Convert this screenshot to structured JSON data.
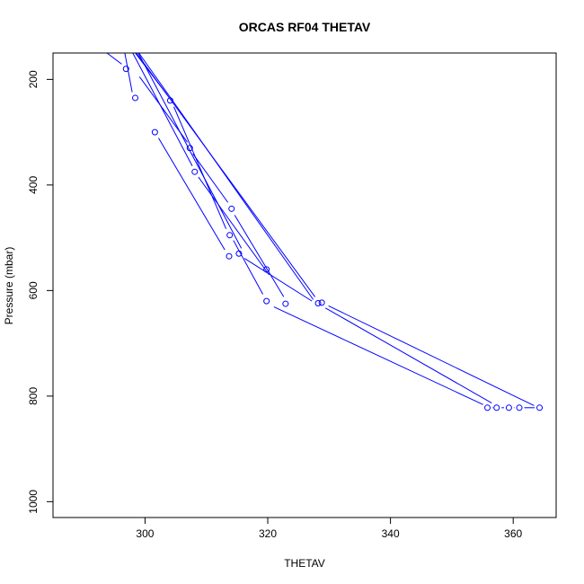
{
  "chart_data": {
    "type": "line",
    "title": "ORCAS RF04 THETAV",
    "xlabel": "THETAV",
    "ylabel": "Pressure (mbar)",
    "xlim": [
      285,
      367
    ],
    "ylim": [
      1030,
      150
    ],
    "y_reversed": true,
    "x_ticks": [
      300,
      320,
      340,
      360
    ],
    "y_ticks": [
      200,
      400,
      600,
      800,
      1000
    ],
    "grid": false,
    "legend": "none",
    "series_color": "#0000ff",
    "point_style": "open-circle",
    "series": [
      {
        "marker_points": [
          {
            "x": 296.9,
            "y": 180
          },
          {
            "x": 298.4,
            "y": 235
          },
          {
            "x": 301.6,
            "y": 300
          },
          {
            "x": 304.1,
            "y": 240
          },
          {
            "x": 307.3,
            "y": 330
          },
          {
            "x": 308.1,
            "y": 375
          },
          {
            "x": 313.7,
            "y": 535
          },
          {
            "x": 313.8,
            "y": 495
          },
          {
            "x": 314.1,
            "y": 445
          },
          {
            "x": 315.3,
            "y": 530
          },
          {
            "x": 319.8,
            "y": 560
          },
          {
            "x": 319.8,
            "y": 620
          },
          {
            "x": 322.9,
            "y": 625
          },
          {
            "x": 328.2,
            "y": 624
          },
          {
            "x": 328.8,
            "y": 623
          },
          {
            "x": 355.8,
            "y": 822
          },
          {
            "x": 357.3,
            "y": 822
          },
          {
            "x": 359.3,
            "y": 822
          },
          {
            "x": 361.0,
            "y": 822
          },
          {
            "x": 364.3,
            "y": 822
          }
        ],
        "segments": [
          [
            {
              "x": 293.8,
              "y": 150
            },
            {
              "x": 296.2,
              "y": 171
            }
          ],
          [
            {
              "x": 296.7,
              "y": 150
            },
            {
              "x": 297.9,
              "y": 224
            }
          ],
          [
            {
              "x": 298.4,
              "y": 150
            },
            {
              "x": 303.6,
              "y": 229
            }
          ],
          [
            {
              "x": 299.1,
              "y": 195
            },
            {
              "x": 306.9,
              "y": 319
            }
          ],
          [
            {
              "x": 298.0,
              "y": 150
            },
            {
              "x": 307.7,
              "y": 364
            }
          ],
          [
            {
              "x": 302.2,
              "y": 311
            },
            {
              "x": 313.0,
              "y": 523
            }
          ],
          [
            {
              "x": 304.7,
              "y": 252
            },
            {
              "x": 313.2,
              "y": 483
            }
          ],
          [
            {
              "x": 308.7,
              "y": 385
            },
            {
              "x": 320.2,
              "y": 570
            }
          ],
          [
            {
              "x": 307.8,
              "y": 341
            },
            {
              "x": 313.5,
              "y": 433
            }
          ],
          [
            {
              "x": 314.6,
              "y": 457
            },
            {
              "x": 322.6,
              "y": 612
            }
          ],
          [
            {
              "x": 314.4,
              "y": 505
            },
            {
              "x": 319.2,
              "y": 607
            }
          ],
          [
            {
              "x": 299.0,
              "y": 150
            },
            {
              "x": 327.4,
              "y": 617
            }
          ],
          [
            {
              "x": 298.6,
              "y": 150
            },
            {
              "x": 327.7,
              "y": 612
            }
          ],
          [
            {
              "x": 316.2,
              "y": 539
            },
            {
              "x": 327.2,
              "y": 620
            }
          ],
          [
            {
              "x": 298.9,
              "y": 150
            },
            {
              "x": 315.7,
              "y": 520
            }
          ],
          [
            {
              "x": 321.0,
              "y": 631
            },
            {
              "x": 355.1,
              "y": 816
            }
          ],
          [
            {
              "x": 329.9,
              "y": 629
            },
            {
              "x": 363.4,
              "y": 818
            }
          ],
          [
            {
              "x": 329.4,
              "y": 633
            },
            {
              "x": 356.5,
              "y": 813
            }
          ],
          [
            {
              "x": 356.6,
              "y": 822
            },
            {
              "x": 356.7,
              "y": 822
            }
          ],
          [
            {
              "x": 358.1,
              "y": 822
            },
            {
              "x": 358.5,
              "y": 822
            }
          ],
          [
            {
              "x": 360.1,
              "y": 822
            },
            {
              "x": 360.2,
              "y": 822
            }
          ],
          [
            {
              "x": 361.8,
              "y": 822
            },
            {
              "x": 363.5,
              "y": 822
            }
          ]
        ]
      }
    ]
  }
}
